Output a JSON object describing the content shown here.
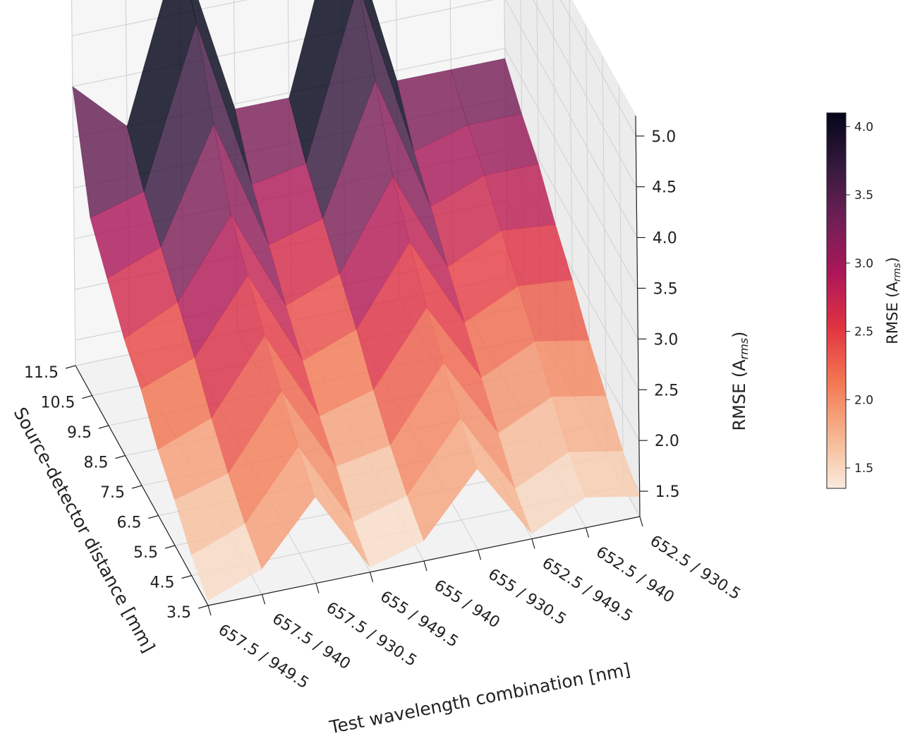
{
  "chart_data": {
    "type": "surface3d",
    "xlabel": "Source-detector distance [mm]",
    "ylabel": "Test wavelength combination [nm]",
    "zlabel": "RMSE (A",
    "zlabel_sub": "rms",
    "zlabel_close": ")",
    "x_values": [
      3.5,
      4.5,
      5.5,
      6.5,
      7.5,
      8.5,
      9.5,
      10.5,
      11.5
    ],
    "x_tick_labels": [
      "3.5",
      "4.5",
      "5.5",
      "6.5",
      "7.5",
      "8.5",
      "9.5",
      "10.5",
      "11.5"
    ],
    "y_categories": [
      "657.5 / 949.5",
      "657.5 / 940",
      "657.5 / 930.5",
      "655 / 949.5",
      "655 / 940",
      "655 / 930.5",
      "652.5 / 949.5",
      "652.5 / 940",
      "652.5 / 930.5"
    ],
    "z_ticks": [
      "1.5",
      "2.0",
      "2.5",
      "3.0",
      "3.5",
      "4.0",
      "4.5",
      "5.0"
    ],
    "zlim": [
      1.25,
      5.2
    ],
    "colorbar": {
      "label": "RMSE (A",
      "label_sub": "rms",
      "label_close": ")",
      "range": [
        1.35,
        4.1
      ],
      "ticks": [
        "1.5",
        "2.0",
        "2.5",
        "3.0",
        "3.5",
        "4.0"
      ]
    },
    "colormap": [
      "#faebdd",
      "#f6b48e",
      "#f37651",
      "#e13342",
      "#ad1759",
      "#701f57",
      "#35193e",
      "#03051a"
    ],
    "surface_alpha": 0.82,
    "z": [
      [
        1.3,
        1.45,
        1.7,
        1.9,
        2.2,
        2.4,
        2.7,
        3.0,
        4.0
      ],
      [
        1.5,
        1.65,
        1.85,
        2.1,
        2.4,
        2.65,
        2.9,
        3.15,
        3.5
      ],
      [
        2.1,
        2.3,
        2.55,
        2.8,
        3.1,
        3.4,
        4.0,
        4.7,
        5.2
      ],
      [
        1.3,
        1.45,
        1.7,
        1.9,
        2.15,
        2.4,
        2.7,
        3.0,
        3.45
      ],
      [
        1.45,
        1.6,
        1.8,
        2.05,
        2.35,
        2.6,
        2.85,
        3.1,
        3.45
      ],
      [
        2.05,
        2.25,
        2.5,
        2.75,
        3.1,
        3.45,
        4.1,
        4.75,
        5.3
      ],
      [
        1.3,
        1.45,
        1.7,
        1.95,
        2.2,
        2.45,
        2.75,
        3.0,
        3.4
      ],
      [
        1.55,
        1.7,
        1.95,
        2.2,
        2.45,
        2.7,
        2.95,
        3.15,
        3.4
      ],
      [
        1.45,
        1.6,
        1.85,
        2.1,
        2.4,
        2.65,
        2.95,
        3.15,
        3.4
      ]
    ]
  }
}
